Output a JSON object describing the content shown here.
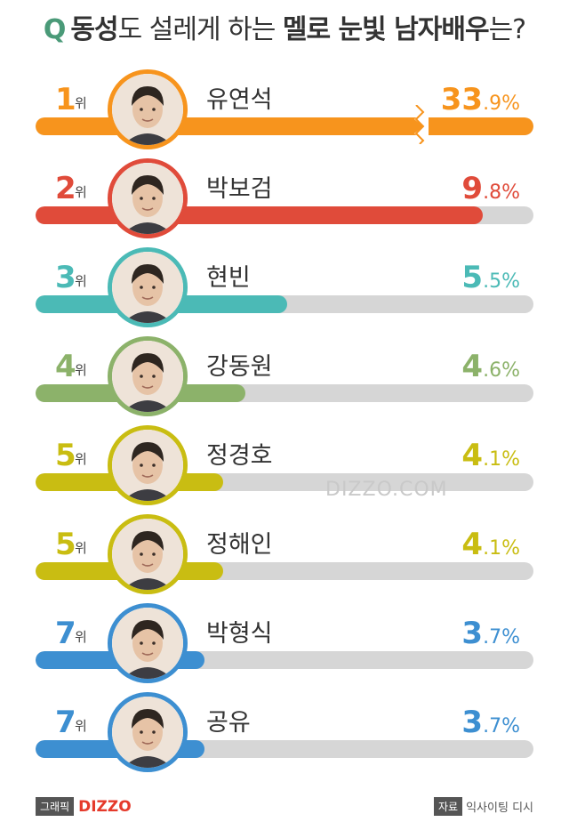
{
  "title": {
    "q": "Q",
    "part1": "동성",
    "part2": "도 설레게 ",
    "part3": "하는 ",
    "part4": "멜로 눈빛 남자배우",
    "part5": "는?"
  },
  "rank_suffix": "위",
  "percent_sign": "%",
  "chart_data": {
    "type": "bar",
    "orientation": "horizontal",
    "title": "Q 동성도 설레게 하는 멜로 눈빛 남자배우는?",
    "unit": "%",
    "axis_break_on_first_bar": true,
    "xlim": [
      0,
      10.9
    ],
    "ranks": [
      "1",
      "2",
      "3",
      "4",
      "5",
      "5",
      "7",
      "7"
    ],
    "categories": [
      "유연석",
      "박보검",
      "현빈",
      "강동원",
      "정경호",
      "정해인",
      "박형식",
      "공유"
    ],
    "value_labels": [
      "33.9",
      "9.8",
      "5.5",
      "4.6",
      "4.1",
      "4.1",
      "3.7",
      "3.7"
    ],
    "values": [
      33.9,
      9.8,
      5.5,
      4.6,
      4.1,
      4.1,
      3.7,
      3.7
    ],
    "colors": [
      "#f7941d",
      "#e04b3a",
      "#4bbab6",
      "#8cb26a",
      "#c9bd12",
      "#c9bd12",
      "#3d8fd1",
      "#3d8fd1"
    ],
    "track_color": "#d6d6d6"
  },
  "watermark": "DIZZO.COM",
  "footer": {
    "graphic_tag": "그래픽",
    "brand": "DIZZO",
    "source_tag": "자료",
    "source": "익사이팅 디시"
  }
}
